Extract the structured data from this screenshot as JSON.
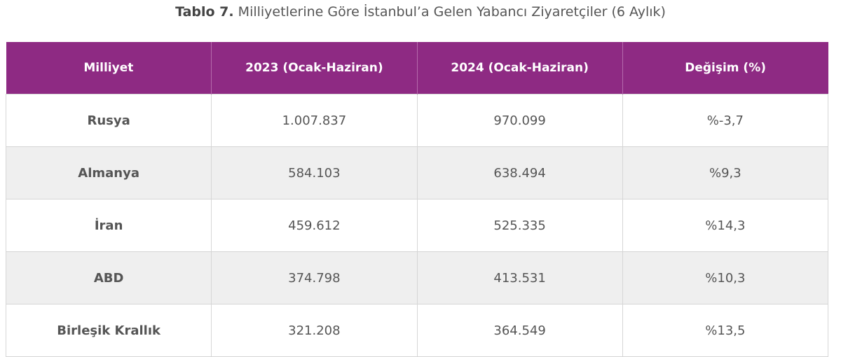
{
  "header": {
    "label": "Tablo 7.",
    "title": "Milliyetlerine Göre İstanbul’a Gelen Yabancı Ziyaretçiler (6 Aylık)"
  },
  "table": {
    "columns": [
      "Milliyet",
      "2023 (Ocak-Haziran)",
      "2024 (Ocak-Haziran)",
      "Değişim (%)"
    ],
    "rows": [
      [
        "Rusya",
        "1.007.837",
        "970.099",
        "%-3,7"
      ],
      [
        "Almanya",
        "584.103",
        "638.494",
        "%9,3"
      ],
      [
        "İran",
        "459.612",
        "525.335",
        "%14,3"
      ],
      [
        "ABD",
        "374.798",
        "413.531",
        "%10,3"
      ],
      [
        "Birleşik Krallık",
        "321.208",
        "364.549",
        "%13,5"
      ]
    ]
  }
}
